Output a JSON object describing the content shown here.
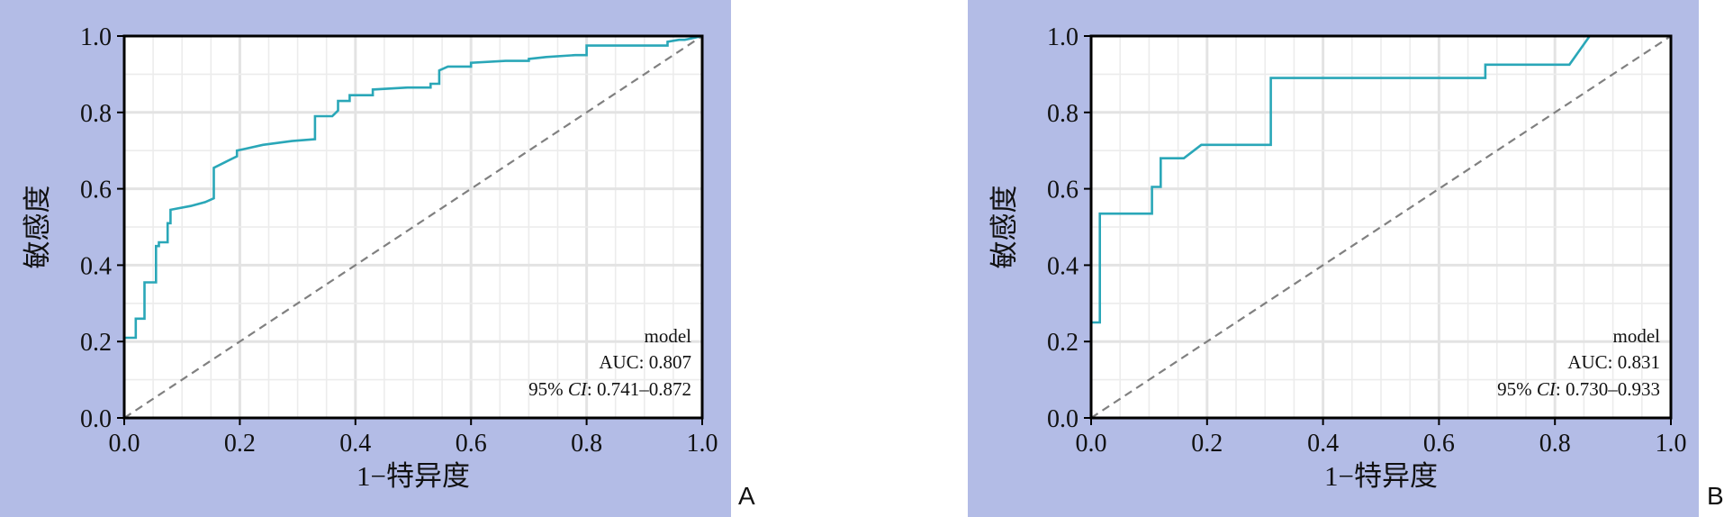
{
  "figure": {
    "background_color": "#b3bce6",
    "curve_color": "#2aa7b8",
    "reference_color": "#808080"
  },
  "chart_data": [
    {
      "type": "line",
      "panel_label": "A",
      "xlabel": "1−特异度",
      "ylabel": "敏感度",
      "xlim": [
        0,
        1
      ],
      "ylim": [
        0,
        1
      ],
      "xticks": [
        "0.0",
        "0.2",
        "0.4",
        "0.6",
        "0.8",
        "1.0"
      ],
      "yticks": [
        "0.0",
        "0.2",
        "0.4",
        "0.6",
        "0.8",
        "1.0"
      ],
      "grid": true,
      "legend_position": "bottom-right",
      "annotation": {
        "model": "model",
        "auc_label": "AUC: 0.807",
        "ci_prefix": "95%",
        "ci_italic": "CI",
        "ci_value": ": 0.741–0.872"
      },
      "series": [
        {
          "x": [
            0.0,
            0.0,
            0.02,
            0.02,
            0.035,
            0.035,
            0.055,
            0.055,
            0.06,
            0.06,
            0.075,
            0.075,
            0.08,
            0.08,
            0.115,
            0.14,
            0.155,
            0.155,
            0.175,
            0.195,
            0.195,
            0.21,
            0.24,
            0.29,
            0.33,
            0.33,
            0.36,
            0.37,
            0.37,
            0.39,
            0.39,
            0.43,
            0.43,
            0.49,
            0.53,
            0.53,
            0.545,
            0.545,
            0.56,
            0.6,
            0.6,
            0.66,
            0.7,
            0.7,
            0.73,
            0.78,
            0.8,
            0.8,
            0.85,
            0.93,
            0.94,
            0.94,
            0.96,
            0.97,
            1.0
          ],
          "y": [
            0.0,
            0.21,
            0.21,
            0.26,
            0.26,
            0.355,
            0.355,
            0.45,
            0.45,
            0.46,
            0.46,
            0.51,
            0.51,
            0.545,
            0.555,
            0.565,
            0.575,
            0.655,
            0.67,
            0.685,
            0.7,
            0.705,
            0.715,
            0.725,
            0.73,
            0.79,
            0.79,
            0.805,
            0.83,
            0.83,
            0.845,
            0.845,
            0.86,
            0.865,
            0.865,
            0.875,
            0.875,
            0.91,
            0.92,
            0.92,
            0.93,
            0.935,
            0.935,
            0.94,
            0.945,
            0.95,
            0.95,
            0.975,
            0.975,
            0.975,
            0.975,
            0.985,
            0.99,
            0.99,
            1.0
          ]
        }
      ],
      "reference_line": {
        "x": [
          0,
          1
        ],
        "y": [
          0,
          1
        ]
      }
    },
    {
      "type": "line",
      "panel_label": "B",
      "xlabel": "1−特异度",
      "ylabel": "敏感度",
      "xlim": [
        0,
        1
      ],
      "ylim": [
        0,
        1
      ],
      "xticks": [
        "0.0",
        "0.2",
        "0.4",
        "0.6",
        "0.8",
        "1.0"
      ],
      "yticks": [
        "0.0",
        "0.2",
        "0.4",
        "0.6",
        "0.8",
        "1.0"
      ],
      "grid": true,
      "legend_position": "bottom-right",
      "annotation": {
        "model": "model",
        "auc_label": "AUC: 0.831",
        "ci_prefix": "95%",
        "ci_italic": "CI",
        "ci_value": ": 0.730–0.933"
      },
      "series": [
        {
          "x": [
            0.0,
            0.0,
            0.015,
            0.015,
            0.105,
            0.105,
            0.12,
            0.12,
            0.16,
            0.19,
            0.31,
            0.31,
            0.68,
            0.68,
            0.825,
            0.86,
            1.0
          ],
          "y": [
            0.0,
            0.25,
            0.25,
            0.535,
            0.535,
            0.605,
            0.605,
            0.68,
            0.68,
            0.715,
            0.715,
            0.89,
            0.89,
            0.925,
            0.925,
            1.0,
            1.0
          ]
        }
      ],
      "reference_line": {
        "x": [
          0,
          1
        ],
        "y": [
          0,
          1
        ]
      }
    }
  ]
}
